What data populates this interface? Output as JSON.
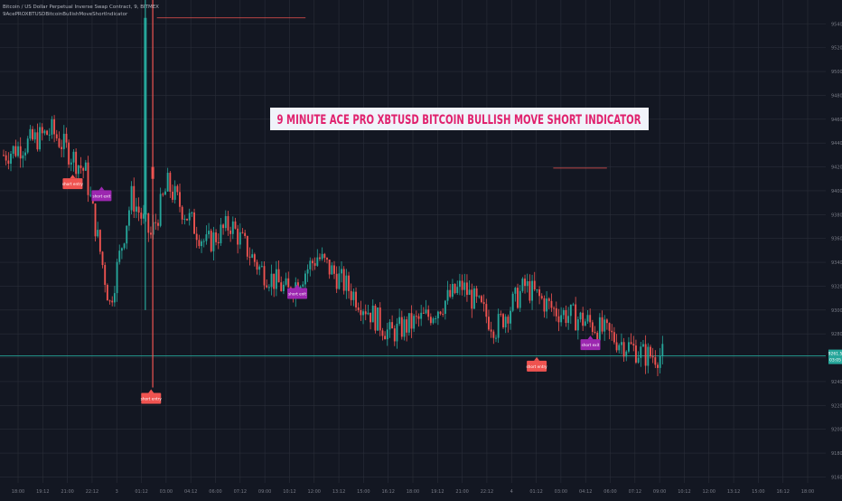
{
  "header": {
    "symbol_line": "Bitcoin / US Dollar Perpetual Inverse Swap Contract, 9, BITMEX",
    "indicator_line": "9AcePROXBTUSDBitcoinBullishMoveShortIndicator"
  },
  "banner": {
    "text": "9 MINUTE ACE PRO XBTUSD BITCOIN BULLISH MOVE SHORT INDICATOR"
  },
  "price_tag": {
    "price": "9261.5",
    "countdown": "03:05"
  },
  "colors": {
    "background": "#131722",
    "grid": "#2a2e39",
    "up": "#26a69a",
    "down": "#ef5350",
    "short_entry": "#ef5350",
    "short_exit": "#9c27b0",
    "banner_bg": "#f0f3fa",
    "banner_text": "#e0226e"
  },
  "chart_data": {
    "type": "candlestick",
    "title": "",
    "ylim": [
      9155,
      9560
    ],
    "y_ticks": [
      "9540.0",
      "9520.0",
      "9500.0",
      "9480.0",
      "9460.0",
      "9440.0",
      "9420.0",
      "9400.0",
      "9380.0",
      "9360.0",
      "9340.0",
      "9320.0",
      "9300.0",
      "9280.0",
      "9260.0",
      "9240.0",
      "9220.0",
      "9200.0",
      "9180.0",
      "9160.0"
    ],
    "x_ticks": [
      "18:00",
      "19:12",
      "21:00",
      "22:12",
      "3",
      "01:12",
      "03:00",
      "04:12",
      "06:00",
      "07:12",
      "09:00",
      "10:12",
      "12:00",
      "13:12",
      "15:00",
      "16:12",
      "18:00",
      "19:12",
      "21:00",
      "22:12",
      "4",
      "01:12",
      "03:00",
      "04:12",
      "06:00",
      "07:12",
      "09:00",
      "10:12",
      "12:00",
      "13:12",
      "15:00",
      "16:12",
      "18:00"
    ],
    "series": [
      {
        "anchor": 9430,
        "dir": -1,
        "n": 20
      },
      {
        "anchor": 9450,
        "dir": -1,
        "n": 14
      },
      {
        "anchor": 9415,
        "dir": -1,
        "n": 10
      },
      {
        "anchor": 9305,
        "dir": 1,
        "n": 9
      },
      {
        "anchor": 9395,
        "dir": -1,
        "n": 8
      },
      {
        "anchor": 9362,
        "dir": 1,
        "n": 7
      },
      {
        "anchor": 9405,
        "dir": -1,
        "n": 6
      },
      {
        "anchor": 9385,
        "dir": -1,
        "n": 10
      },
      {
        "anchor": 9355,
        "dir": -1,
        "n": 10
      },
      {
        "anchor": 9372,
        "dir": -1,
        "n": 12
      },
      {
        "anchor": 9335,
        "dir": -1,
        "n": 12
      },
      {
        "anchor": 9315,
        "dir": 1,
        "n": 12
      },
      {
        "anchor": 9345,
        "dir": -1,
        "n": 12
      },
      {
        "anchor": 9320,
        "dir": -1,
        "n": 18
      },
      {
        "anchor": 9280,
        "dir": -1,
        "n": 16
      },
      {
        "anchor": 9295,
        "dir": 1,
        "n": 14
      },
      {
        "anchor": 9320,
        "dir": -1,
        "n": 14
      },
      {
        "anchor": 9285,
        "dir": -1,
        "n": 12
      },
      {
        "anchor": 9320,
        "dir": 1,
        "n": 12
      },
      {
        "anchor": 9300,
        "dir": -1,
        "n": 14
      },
      {
        "anchor": 9290,
        "dir": 1,
        "n": 12
      },
      {
        "anchor": 9275,
        "dir": -1,
        "n": 12
      },
      {
        "anchor": 9262,
        "dir": -1,
        "n": 8
      }
    ],
    "spikes": [
      {
        "x_frac": 0.185,
        "high": 9560,
        "low": 9235,
        "open": 9420,
        "close": 9410
      },
      {
        "x_frac": 0.176,
        "high": 9560,
        "low": 9300,
        "open": 9380,
        "close": 9545
      }
    ],
    "levels": [
      {
        "price": 9545,
        "x_from": 0.19,
        "x_to": 0.37,
        "color": "#ef5350"
      },
      {
        "price": 9419,
        "x_from": 0.67,
        "x_to": 0.735,
        "color": "#ef5350"
      },
      {
        "price": 9261.5,
        "x_from": 0.0,
        "x_to": 1.0,
        "color": "#26a69a"
      }
    ],
    "signals": [
      {
        "label": "short entry",
        "type": "short_entry",
        "x_frac": 0.088,
        "price": 9415,
        "above": false
      },
      {
        "label": "short exit",
        "type": "short_exit",
        "x_frac": 0.123,
        "price": 9405,
        "above": false
      },
      {
        "label": "short entry",
        "type": "short_entry",
        "x_frac": 0.183,
        "price": 9235,
        "above": false
      },
      {
        "label": "short exit",
        "type": "short_exit",
        "x_frac": 0.36,
        "price": 9323,
        "above": false
      },
      {
        "label": "short entry",
        "type": "short_entry",
        "x_frac": 0.65,
        "price": 9262,
        "above": false
      },
      {
        "label": "short exit",
        "type": "short_exit",
        "x_frac": 0.715,
        "price": 9280,
        "above": false
      }
    ]
  }
}
